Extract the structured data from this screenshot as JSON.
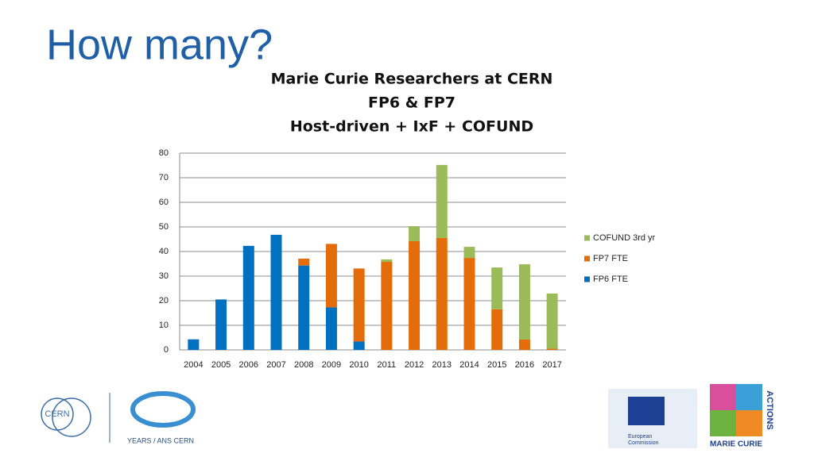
{
  "heading": "How many?",
  "chart_data": {
    "type": "stacked_bar",
    "title": [
      "Marie Curie Researchers at CERN",
      "FP6 & FP7",
      "Host-driven + IxF + COFUND"
    ],
    "categories": [
      "2004",
      "2005",
      "2006",
      "2007",
      "2008",
      "2009",
      "2010",
      "2011",
      "2012",
      "2013",
      "2014",
      "2015",
      "2016",
      "2017"
    ],
    "series": [
      {
        "name": "FP6 FTE",
        "color": "#0070c0",
        "values": [
          4.3,
          20.5,
          42.3,
          46.8,
          34.3,
          17.3,
          3.4,
          0,
          0,
          0,
          0,
          0,
          0,
          0
        ]
      },
      {
        "name": "FP7 FTE",
        "color": "#e46c0a",
        "values": [
          0,
          0,
          0,
          0,
          2.8,
          25.8,
          29.7,
          35.8,
          44.2,
          45.5,
          37.4,
          16.5,
          4.2,
          0.5
        ]
      },
      {
        "name": "COFUND 3rd yr",
        "color": "#9bbb59",
        "values": [
          0,
          0,
          0,
          0,
          0,
          0,
          0,
          1,
          6.1,
          29.7,
          4.5,
          17,
          30.6,
          22.4
        ]
      }
    ],
    "ylim": [
      0,
      80
    ],
    "yticks": [
      0,
      10,
      20,
      30,
      40,
      50,
      60,
      70,
      80
    ],
    "grid": true,
    "legend": "right"
  },
  "logos": {
    "cern": "CERN",
    "anniversary": "YEARS / ANS CERN",
    "commission": [
      "European",
      "Commission"
    ],
    "marie_curie": "MARIE CURIE",
    "actions": "ACTIONS"
  }
}
